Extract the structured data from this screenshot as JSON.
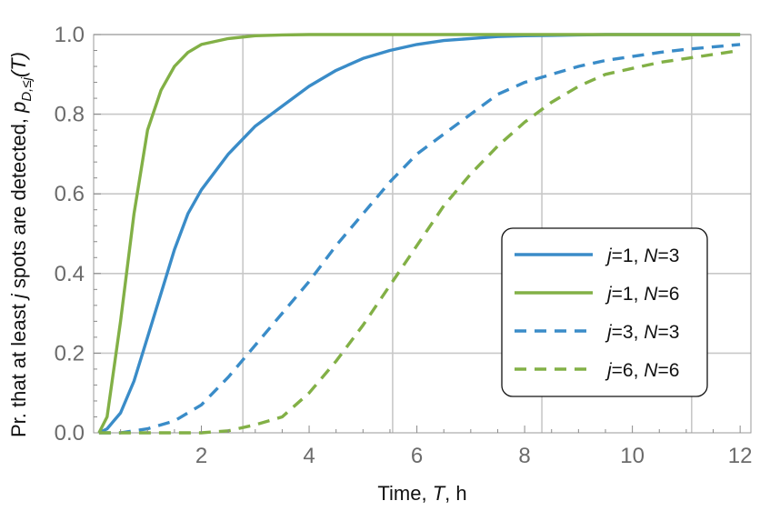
{
  "chart_data": {
    "type": "line",
    "title": "",
    "xlabel_parts": [
      "Time, ",
      "T",
      ", h"
    ],
    "ylabel_parts": [
      "Pr. that at least ",
      "j",
      " spots are detected, ",
      "p",
      "D,≤j",
      "(T)"
    ],
    "xlim": [
      0,
      12.2
    ],
    "ylim": [
      0,
      1.0
    ],
    "xticks": [
      2,
      4,
      6,
      8,
      10,
      12
    ],
    "yticks": [
      0.0,
      0.2,
      0.4,
      0.6,
      0.8,
      1.0
    ],
    "ytick_labels": [
      "0.0",
      "0.2",
      "0.4",
      "0.6",
      "0.8",
      "1.0"
    ],
    "grid_x": [
      2.77,
      5.55,
      8.32,
      11.1
    ],
    "grid_y": [
      0.2,
      0.4,
      0.6,
      0.8,
      1.0
    ],
    "legend_position": "right",
    "x": [
      0.1,
      0.25,
      0.5,
      0.75,
      1.0,
      1.25,
      1.5,
      1.75,
      2.0,
      2.5,
      3.0,
      3.5,
      4.0,
      4.5,
      5.0,
      5.5,
      6.0,
      6.5,
      7.0,
      7.5,
      8.0,
      8.5,
      9.0,
      9.5,
      10.0,
      10.5,
      11.0,
      11.5,
      12.0
    ],
    "series": [
      {
        "name_parts": [
          "j",
          "=1, ",
          "N",
          "=3"
        ],
        "color": "#3a8cc8",
        "dash": "solid",
        "values": [
          0.0,
          0.01,
          0.05,
          0.13,
          0.24,
          0.35,
          0.46,
          0.55,
          0.61,
          0.7,
          0.77,
          0.82,
          0.87,
          0.91,
          0.94,
          0.96,
          0.975,
          0.985,
          0.99,
          0.995,
          0.997,
          0.998,
          0.999,
          1.0,
          1.0,
          1.0,
          1.0,
          1.0,
          1.0
        ]
      },
      {
        "name_parts": [
          "j",
          "=1, ",
          "N",
          "=6"
        ],
        "color": "#82b046",
        "dash": "solid",
        "values": [
          0.0,
          0.04,
          0.28,
          0.55,
          0.76,
          0.86,
          0.92,
          0.955,
          0.975,
          0.99,
          0.997,
          0.999,
          1.0,
          1.0,
          1.0,
          1.0,
          1.0,
          1.0,
          1.0,
          1.0,
          1.0,
          1.0,
          1.0,
          1.0,
          1.0,
          1.0,
          1.0,
          1.0,
          1.0
        ]
      },
      {
        "name_parts": [
          "j",
          "=3, ",
          "N",
          "=3"
        ],
        "color": "#3a8cc8",
        "dash": "dashed",
        "values": [
          0.0,
          0.0,
          0.0,
          0.005,
          0.01,
          0.02,
          0.03,
          0.05,
          0.07,
          0.14,
          0.22,
          0.3,
          0.38,
          0.47,
          0.55,
          0.63,
          0.7,
          0.75,
          0.8,
          0.85,
          0.88,
          0.9,
          0.92,
          0.935,
          0.945,
          0.955,
          0.963,
          0.969,
          0.975
        ]
      },
      {
        "name_parts": [
          "j",
          "=6, ",
          "N",
          "=6"
        ],
        "color": "#82b046",
        "dash": "dashed",
        "values": [
          0.0,
          0.0,
          0.0,
          0.0,
          0.0,
          0.0,
          0.0,
          0.0,
          0.0,
          0.005,
          0.02,
          0.04,
          0.1,
          0.18,
          0.27,
          0.37,
          0.47,
          0.57,
          0.65,
          0.72,
          0.78,
          0.83,
          0.87,
          0.9,
          0.915,
          0.93,
          0.94,
          0.95,
          0.96
        ]
      }
    ]
  }
}
